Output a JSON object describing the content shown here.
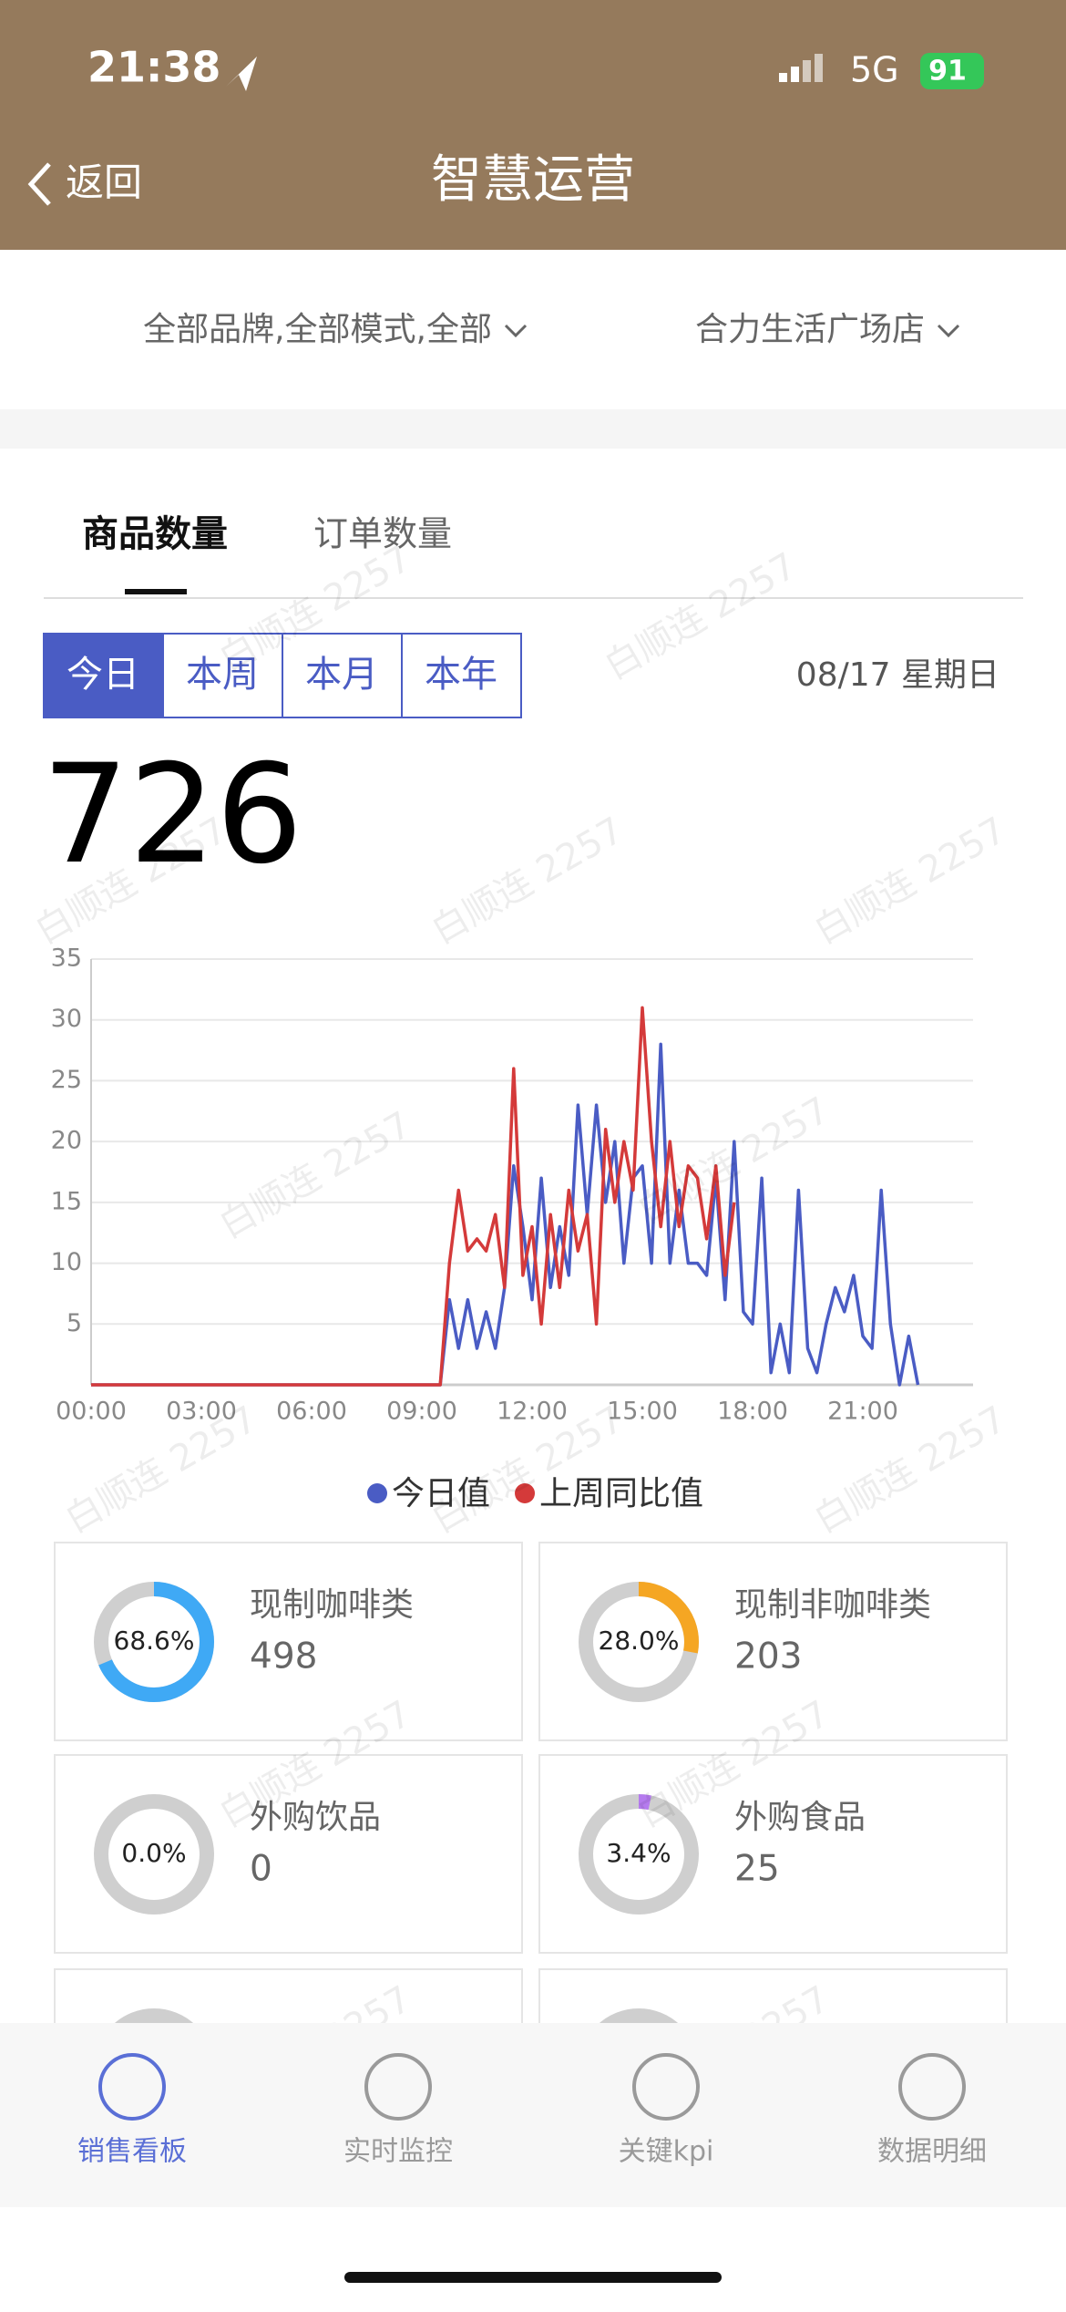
{
  "status_bar": {
    "time": "21:38",
    "network": "5G",
    "battery": "91"
  },
  "nav": {
    "back": "返回",
    "title": "智慧运营"
  },
  "filters": [
    "全部品牌,全部模式,全部",
    "合力生活广场店"
  ],
  "tabs": [
    "商品数量",
    "订单数量"
  ],
  "periods": [
    "今日",
    "本周",
    "本月",
    "本年"
  ],
  "date": "08/17 星期日",
  "total": 726,
  "watermark": "白顺连 2257",
  "chart_data": {
    "type": "line",
    "x": [
      "00:00",
      "00:15",
      "00:30",
      "00:45",
      "01:00",
      "01:15",
      "01:30",
      "01:45",
      "02:00",
      "02:15",
      "02:30",
      "02:45",
      "03:00",
      "03:15",
      "03:30",
      "03:45",
      "04:00",
      "04:15",
      "04:30",
      "04:45",
      "05:00",
      "05:15",
      "05:30",
      "05:45",
      "06:00",
      "06:15",
      "06:30",
      "06:45",
      "07:00",
      "07:15",
      "07:30",
      "07:45",
      "08:00",
      "08:15",
      "08:30",
      "08:45",
      "09:00",
      "09:15",
      "09:30",
      "09:45",
      "10:00",
      "10:15",
      "10:30",
      "10:45",
      "11:00",
      "11:15",
      "11:30",
      "11:45",
      "12:00",
      "12:15",
      "12:30",
      "12:45",
      "13:00",
      "13:15",
      "13:30",
      "13:45",
      "14:00",
      "14:15",
      "14:30",
      "14:45",
      "15:00",
      "15:15",
      "15:30",
      "15:45",
      "16:00",
      "16:15",
      "16:30",
      "16:45",
      "17:00",
      "17:15",
      "17:30",
      "17:45",
      "18:00",
      "18:15",
      "18:30",
      "18:45",
      "19:00",
      "19:15",
      "19:30",
      "19:45",
      "20:00",
      "20:15",
      "20:30",
      "20:45",
      "21:00",
      "21:15",
      "21:30",
      "21:45",
      "22:00",
      "22:15",
      "22:30",
      "22:45",
      "23:00",
      "23:15",
      "23:30",
      "23:45"
    ],
    "xticks": [
      "00:00",
      "03:00",
      "06:00",
      "09:00",
      "12:00",
      "15:00",
      "18:00",
      "21:00"
    ],
    "ylim": [
      0,
      35
    ],
    "yticks": [
      5,
      10,
      15,
      20,
      25,
      30,
      35
    ],
    "grid": true,
    "legend": "bottom",
    "series": [
      {
        "name": "今日值",
        "color": "#4a5cc4",
        "values": [
          0,
          0,
          0,
          0,
          0,
          0,
          0,
          0,
          0,
          0,
          0,
          0,
          0,
          0,
          0,
          0,
          0,
          0,
          0,
          0,
          0,
          0,
          0,
          0,
          0,
          0,
          0,
          0,
          0,
          0,
          0,
          0,
          0,
          0,
          0,
          0,
          0,
          0,
          0,
          7,
          3,
          7,
          3,
          6,
          3,
          8,
          18,
          13,
          7,
          17,
          8,
          13,
          9,
          23,
          14,
          23,
          15,
          20,
          10,
          17,
          18,
          10,
          28,
          10,
          16,
          10,
          10,
          9,
          17,
          7,
          20,
          6,
          5,
          17,
          1,
          5,
          1,
          16,
          3,
          1,
          5,
          8,
          6,
          9,
          4,
          3,
          16,
          5,
          0,
          4,
          0,
          null,
          null,
          null,
          null,
          null
        ]
      },
      {
        "name": "上周同比值",
        "color": "#d43a3a",
        "values": [
          0,
          0,
          0,
          0,
          0,
          0,
          0,
          0,
          0,
          0,
          0,
          0,
          0,
          0,
          0,
          0,
          0,
          0,
          0,
          0,
          0,
          0,
          0,
          0,
          0,
          0,
          0,
          0,
          0,
          0,
          0,
          0,
          0,
          0,
          0,
          0,
          0,
          0,
          0,
          10,
          16,
          11,
          12,
          11,
          14,
          8,
          26,
          9,
          13,
          5,
          14,
          8,
          16,
          11,
          14,
          5,
          21,
          15,
          20,
          16,
          31,
          20,
          13,
          20,
          13,
          18,
          17,
          12,
          18,
          9,
          15,
          null,
          null,
          null,
          null,
          null,
          null,
          null,
          null,
          null,
          null,
          null,
          null,
          null,
          null,
          null,
          null,
          null,
          null,
          null,
          null,
          null,
          null,
          null,
          null,
          null
        ]
      }
    ]
  },
  "cards": [
    {
      "name": "现制咖啡类",
      "value": 498,
      "percent": 68.6,
      "percent_label": "68.6%",
      "color": "#3fa9f5"
    },
    {
      "name": "现制非咖啡类",
      "value": 203,
      "percent": 28.0,
      "percent_label": "28.0%",
      "color": "#f5a623"
    },
    {
      "name": "外购饮品",
      "value": 0,
      "percent": 0.0,
      "percent_label": "0.0%",
      "color": "#3fa9f5"
    },
    {
      "name": "外购食品",
      "value": 25,
      "percent": 3.4,
      "percent_label": "3.4%",
      "color": "#b57bee"
    }
  ],
  "tab_bar": [
    "销售看板",
    "实时监控",
    "关键kpi",
    "数据明细"
  ]
}
